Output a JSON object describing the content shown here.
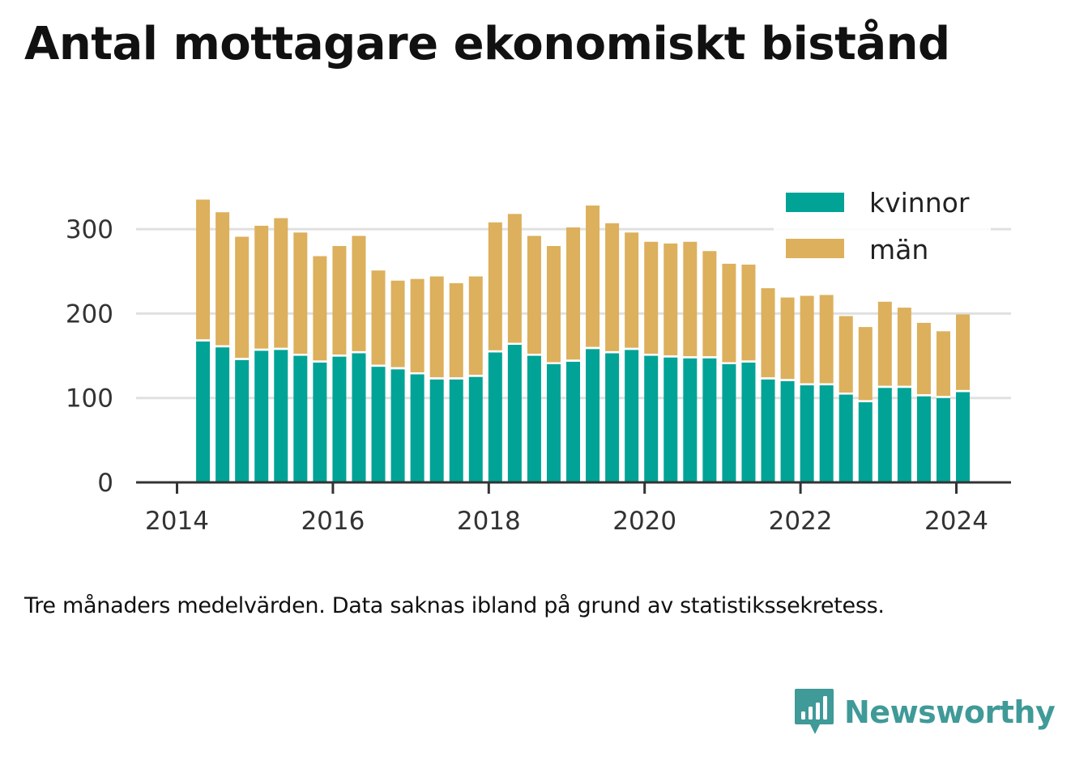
{
  "title": "Antal mottagare ekonomiskt bistånd",
  "note": "Tre månaders medelvärden. Data saknas ibland på grund av statistikssekretess.",
  "brand": {
    "name": "Newsworthy",
    "color": "#3f9a98",
    "icon": "bar-chart-speech-bubble-icon"
  },
  "colors": {
    "kvinnor": "#00a396",
    "man": "#dcb05c",
    "grid": "#e0e0e0",
    "axis": "#333333"
  },
  "chart_data": {
    "type": "bar",
    "stacked": true,
    "x": [
      "2014-05",
      "2014-08",
      "2014-11",
      "2015-02",
      "2015-05",
      "2015-08",
      "2015-11",
      "2016-02",
      "2016-05",
      "2016-08",
      "2016-11",
      "2017-02",
      "2017-05",
      "2017-08",
      "2017-11",
      "2018-02",
      "2018-05",
      "2018-08",
      "2018-11",
      "2019-02",
      "2019-05",
      "2019-08",
      "2019-11",
      "2020-02",
      "2020-05",
      "2020-08",
      "2020-11",
      "2021-02",
      "2021-05",
      "2021-08",
      "2021-11",
      "2022-02",
      "2022-05",
      "2022-08",
      "2022-11",
      "2023-02",
      "2023-05",
      "2023-08",
      "2023-11",
      "2024-02"
    ],
    "series": [
      {
        "name": "kvinnor",
        "values": [
          167,
          160,
          145,
          156,
          157,
          150,
          142,
          149,
          153,
          137,
          134,
          128,
          122,
          122,
          125,
          154,
          163,
          150,
          140,
          143,
          158,
          153,
          157,
          150,
          148,
          147,
          147,
          140,
          142,
          122,
          120,
          115,
          115,
          104,
          95,
          112,
          112,
          102,
          100,
          107
        ]
      },
      {
        "name": "män",
        "values": [
          168,
          160,
          146,
          148,
          156,
          146,
          126,
          131,
          139,
          114,
          105,
          113,
          122,
          114,
          119,
          154,
          155,
          142,
          140,
          159,
          170,
          154,
          139,
          135,
          135,
          138,
          127,
          119,
          116,
          108,
          99,
          106,
          107,
          93,
          89,
          102,
          95,
          87,
          79,
          92
        ]
      }
    ],
    "xticks": [
      "2014",
      "2016",
      "2018",
      "2020",
      "2022",
      "2024"
    ],
    "yticks": [
      0,
      100,
      200,
      300
    ],
    "ylim": [
      0,
      340
    ],
    "legend": "top-right",
    "grid": "horizontal"
  }
}
